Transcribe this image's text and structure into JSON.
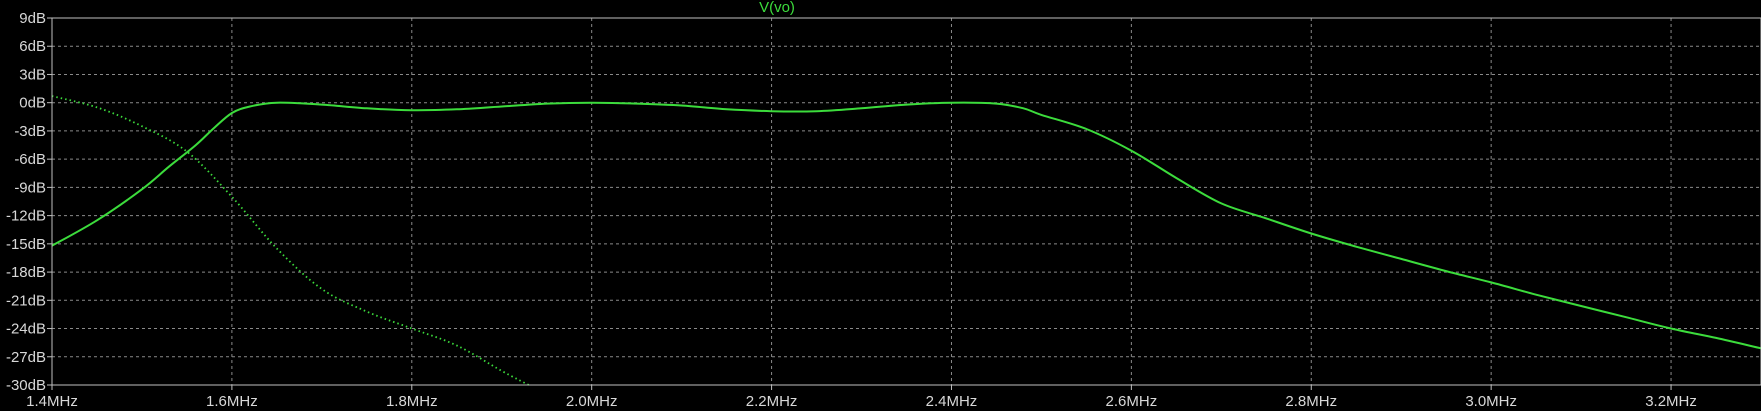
{
  "chart_data": {
    "type": "line",
    "title": "V(vo)",
    "xlabel": "",
    "ylabel": "",
    "xlim": [
      1.4,
      3.3
    ],
    "ylim": [
      -30,
      9
    ],
    "x_unit": "MHz",
    "y_unit": "dB",
    "grid": true,
    "x_ticks": [
      1.4,
      1.6,
      1.8,
      2.0,
      2.2,
      2.4,
      2.6,
      2.8,
      3.0,
      3.2
    ],
    "x_tick_labels": [
      "1.4MHz",
      "1.6MHz",
      "1.8MHz",
      "2.0MHz",
      "2.2MHz",
      "2.4MHz",
      "2.6MHz",
      "2.8MHz",
      "3.0MHz",
      "3.2MHz"
    ],
    "y_ticks": [
      9,
      6,
      3,
      0,
      -3,
      -6,
      -9,
      -12,
      -15,
      -18,
      -21,
      -24,
      -27,
      -30
    ],
    "y_tick_labels": [
      "9dB",
      "6dB",
      "3dB",
      "0dB",
      "-3dB",
      "-6dB",
      "-9dB",
      "-12dB",
      "-15dB",
      "-18dB",
      "-21dB",
      "-24dB",
      "-27dB",
      "-30dB"
    ],
    "series": [
      {
        "name": "V(vo)",
        "kind": "magnitude",
        "style": "solid",
        "color": "#3cdc3c",
        "x": [
          1.4,
          1.45,
          1.5,
          1.53,
          1.56,
          1.58,
          1.6,
          1.62,
          1.65,
          1.7,
          1.75,
          1.8,
          1.85,
          1.9,
          1.95,
          2.0,
          2.05,
          2.1,
          2.15,
          2.2,
          2.25,
          2.3,
          2.35,
          2.4,
          2.45,
          2.48,
          2.5,
          2.55,
          2.6,
          2.65,
          2.7,
          2.75,
          2.8,
          2.85,
          2.9,
          2.95,
          3.0,
          3.05,
          3.1,
          3.15,
          3.2,
          3.25,
          3.3
        ],
        "y": [
          -15.2,
          -12.5,
          -9.2,
          -6.8,
          -4.5,
          -2.7,
          -1.1,
          -0.4,
          0,
          -0.2,
          -0.6,
          -0.8,
          -0.7,
          -0.4,
          -0.1,
          0,
          -0.1,
          -0.3,
          -0.7,
          -0.9,
          -0.9,
          -0.6,
          -0.2,
          0,
          -0.1,
          -0.6,
          -1.3,
          -2.8,
          -5.1,
          -8.0,
          -10.7,
          -12.3,
          -13.9,
          -15.3,
          -16.6,
          -17.9,
          -19.1,
          -20.4,
          -21.6,
          -22.8,
          -24.0,
          -25.0,
          -26.1
        ]
      },
      {
        "name": "V(vo)",
        "kind": "phase",
        "style": "dotted",
        "color": "#3cdc3c",
        "x": [
          1.4,
          1.45,
          1.5,
          1.55,
          1.6,
          1.65,
          1.7,
          1.75,
          1.8,
          1.85,
          1.9,
          1.93
        ],
        "y": [
          0.7,
          -0.5,
          -2.5,
          -5.2,
          -10.0,
          -15.5,
          -19.8,
          -22.2,
          -24.0,
          -25.8,
          -28.5,
          -30.0
        ]
      }
    ]
  }
}
